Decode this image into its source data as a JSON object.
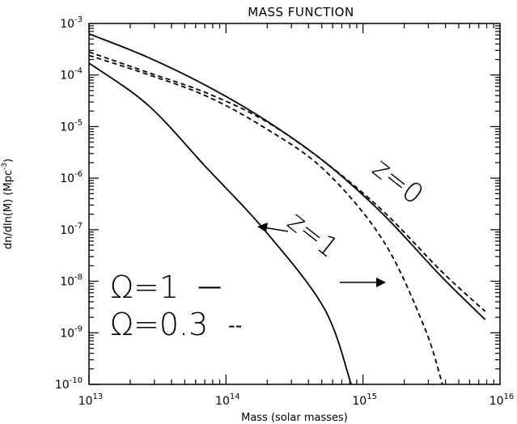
{
  "chart_data": {
    "type": "line",
    "title": "MASS FUNCTION",
    "xlabel": "Mass (solar masses)",
    "ylabel": "dn/dln(M) (Mpc",
    "ylabel_sup": "-3",
    "ylabel_close": ")",
    "xscale": "log",
    "yscale": "log",
    "xlim": [
      10000000000000.0,
      1e+16
    ],
    "ylim": [
      1e-10,
      0.001
    ],
    "x_ticks": [
      {
        "base": "10",
        "exp": "13",
        "value": 10000000000000.0
      },
      {
        "base": "10",
        "exp": "14",
        "value": 100000000000000.0
      },
      {
        "base": "10",
        "exp": "15",
        "value": 1000000000000000.0
      },
      {
        "base": "10",
        "exp": "16",
        "value": 1e+16
      }
    ],
    "y_ticks": [
      {
        "base": "10",
        "exp": "-10",
        "value": 1e-10
      },
      {
        "base": "10",
        "exp": "-9",
        "value": 1e-09
      },
      {
        "base": "10",
        "exp": "-8",
        "value": 1e-08
      },
      {
        "base": "10",
        "exp": "-7",
        "value": 1e-07
      },
      {
        "base": "10",
        "exp": "-6",
        "value": 1e-06
      },
      {
        "base": "10",
        "exp": "-5",
        "value": 1e-05
      },
      {
        "base": "10",
        "exp": "-4",
        "value": 0.0001
      },
      {
        "base": "10",
        "exp": "-3",
        "value": 0.001
      }
    ],
    "series": [
      {
        "style": "solid",
        "x": [
          10000000000000.0,
          27000000000000.0,
          72000000000000.0,
          190000000000000.0,
          520000000000000.0,
          1400000000000000.0,
          3700000000000000.0,
          7800000000000000.0
        ],
        "y": [
          0.00063,
          0.00022,
          6.2e-05,
          1.38e-05,
          2.1e-06,
          2e-07,
          1.26e-08,
          1.8e-09
        ]
      },
      {
        "style": "dashed",
        "x": [
          10000000000000.0,
          27000000000000.0,
          72000000000000.0,
          190000000000000.0,
          520000000000000.0,
          1400000000000000.0,
          3700000000000000.0,
          7800000000000000.0
        ],
        "y": [
          0.00028,
          0.000112,
          4.5e-05,
          1.32e-05,
          2.1e-06,
          2.3e-07,
          1.6e-08,
          2.6e-09
        ]
      },
      {
        "style": "solid",
        "x": [
          10000000000000.0,
          27000000000000.0,
          72000000000000.0,
          190000000000000.0,
          520000000000000.0,
          820000000000000.0
        ],
        "y": [
          0.00017,
          2.6e-05,
          1.6e-06,
          1e-07,
          3e-09,
          1e-10
        ]
      },
      {
        "style": "dashed",
        "x": [
          10000000000000.0,
          27000000000000.0,
          72000000000000.0,
          190000000000000.0,
          520000000000000.0,
          1400000000000000.0,
          2800000000000000.0,
          3800000000000000.0
        ],
        "y": [
          0.00024,
          0.000102,
          3.9e-05,
          9.6e-06,
          1.45e-06,
          6.2e-08,
          1.3e-09,
          1e-10
        ]
      }
    ],
    "annotations": {
      "z0": "z=0",
      "z1": "z=1",
      "omega1": "Ω=1",
      "omega03": "Ω=0.3",
      "solid_key": "—",
      "dashed_key": "--"
    }
  }
}
